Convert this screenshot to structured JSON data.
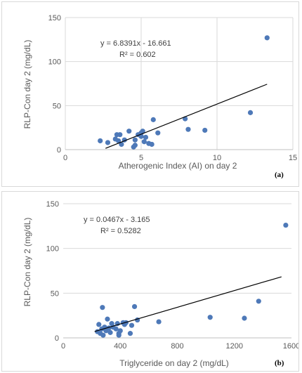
{
  "colors": {
    "marker": "#4e79b8",
    "trendline": "#000000",
    "grid": "#d9d9d9",
    "text": "#595959"
  },
  "chart_data": [
    {
      "type": "scatter",
      "panel_label": "(a)",
      "xlabel": "Atherogenic Index (AI) on day 2",
      "ylabel": "RLP-Con day 2 (mg/dL)",
      "xlim": [
        0,
        15
      ],
      "ylim": [
        0,
        150
      ],
      "xticks": [
        "0",
        "5",
        "10",
        "15"
      ],
      "yticks": [
        "0",
        "50",
        "100",
        "150"
      ],
      "grid": "vertical and horizontal",
      "trendline": {
        "equation": "y = 6.8391x - 16.661",
        "r2": "R² = 0.602",
        "slope": 6.8391,
        "intercept": -16.661,
        "x_range": [
          2.65,
          13.3
        ]
      },
      "points": [
        {
          "x": 2.3,
          "y": 10
        },
        {
          "x": 2.8,
          "y": 8
        },
        {
          "x": 3.3,
          "y": 12
        },
        {
          "x": 3.4,
          "y": 17
        },
        {
          "x": 3.6,
          "y": 17
        },
        {
          "x": 3.5,
          "y": 10
        },
        {
          "x": 3.7,
          "y": 6
        },
        {
          "x": 3.9,
          "y": 11
        },
        {
          "x": 4.2,
          "y": 21
        },
        {
          "x": 4.5,
          "y": 3
        },
        {
          "x": 4.6,
          "y": 5
        },
        {
          "x": 4.6,
          "y": 11
        },
        {
          "x": 4.8,
          "y": 17
        },
        {
          "x": 5.0,
          "y": 15
        },
        {
          "x": 5.0,
          "y": 19
        },
        {
          "x": 5.1,
          "y": 21
        },
        {
          "x": 5.2,
          "y": 9
        },
        {
          "x": 5.3,
          "y": 14
        },
        {
          "x": 5.5,
          "y": 7
        },
        {
          "x": 5.7,
          "y": 6
        },
        {
          "x": 5.8,
          "y": 34
        },
        {
          "x": 6.1,
          "y": 19
        },
        {
          "x": 7.9,
          "y": 35
        },
        {
          "x": 8.1,
          "y": 23
        },
        {
          "x": 9.2,
          "y": 22
        },
        {
          "x": 12.2,
          "y": 42
        },
        {
          "x": 13.3,
          "y": 127
        }
      ]
    },
    {
      "type": "scatter",
      "panel_label": "(b)",
      "xlabel": "Triglyceride on day 2 (mg/dL)",
      "ylabel": "RLP-Con day 2 (mg/dL)",
      "xlim": [
        0,
        1600
      ],
      "ylim": [
        0,
        150
      ],
      "xticks": [
        "0",
        "400",
        "800",
        "1200",
        "1600"
      ],
      "yticks": [
        "0",
        "50",
        "100",
        "150"
      ],
      "grid": "horizontal",
      "trendline": {
        "equation": "y = 0.0467x - 3.165",
        "r2": "R² = 0.5282",
        "slope": 0.0467,
        "intercept": -3.165,
        "x_range": [
          220,
          1530
        ]
      },
      "points": [
        {
          "x": 240,
          "y": 7
        },
        {
          "x": 250,
          "y": 15
        },
        {
          "x": 260,
          "y": 5
        },
        {
          "x": 270,
          "y": 10
        },
        {
          "x": 275,
          "y": 34
        },
        {
          "x": 280,
          "y": 3
        },
        {
          "x": 290,
          "y": 12
        },
        {
          "x": 300,
          "y": 8
        },
        {
          "x": 310,
          "y": 21
        },
        {
          "x": 320,
          "y": 11
        },
        {
          "x": 330,
          "y": 6
        },
        {
          "x": 340,
          "y": 16
        },
        {
          "x": 350,
          "y": 12
        },
        {
          "x": 370,
          "y": 10
        },
        {
          "x": 380,
          "y": 16
        },
        {
          "x": 390,
          "y": 5
        },
        {
          "x": 390,
          "y": 3
        },
        {
          "x": 400,
          "y": 8
        },
        {
          "x": 420,
          "y": 17
        },
        {
          "x": 430,
          "y": 15
        },
        {
          "x": 440,
          "y": 17
        },
        {
          "x": 470,
          "y": 5
        },
        {
          "x": 480,
          "y": 14
        },
        {
          "x": 500,
          "y": 35
        },
        {
          "x": 520,
          "y": 20
        },
        {
          "x": 670,
          "y": 18
        },
        {
          "x": 1030,
          "y": 23
        },
        {
          "x": 1270,
          "y": 22
        },
        {
          "x": 1370,
          "y": 41
        },
        {
          "x": 1560,
          "y": 126
        }
      ]
    }
  ]
}
